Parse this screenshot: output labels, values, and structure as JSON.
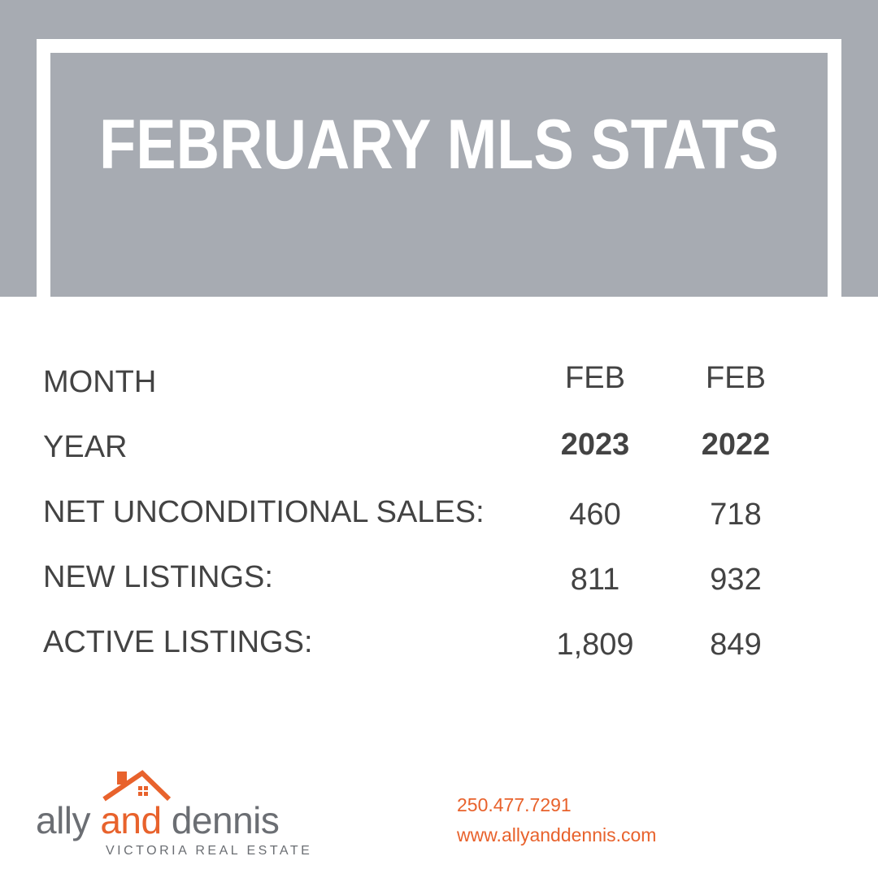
{
  "header": {
    "title": "FEBRUARY MLS STATS"
  },
  "table": {
    "rows": [
      [
        "MONTH",
        "FEB",
        "FEB"
      ],
      [
        "YEAR",
        "2023",
        "2022"
      ],
      [
        "NET UNCONDITIONAL SALES:",
        "460",
        "718"
      ],
      [
        "NEW LISTINGS:",
        "811",
        "932"
      ],
      [
        "ACTIVE LISTINGS:",
        "1,809",
        "849"
      ]
    ]
  },
  "logo": {
    "name_start": "ally",
    "name_middle": "and",
    "name_end": "dennis",
    "tagline": "VICTORIA REAL ESTATE"
  },
  "contact": {
    "phone": "250.477.7291",
    "website": "www.allyanddennis.com"
  }
}
